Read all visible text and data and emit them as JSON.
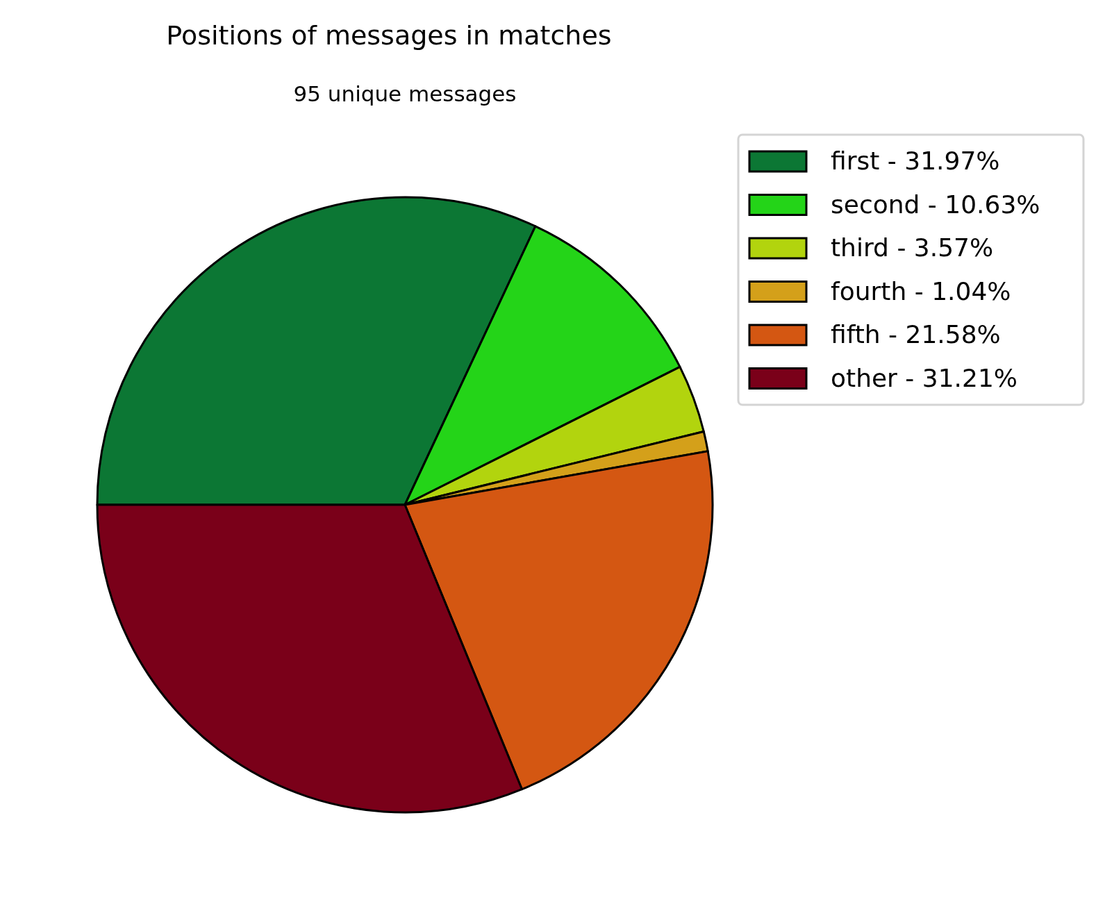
{
  "chart_data": {
    "type": "pie",
    "title": "Positions of messages in matches",
    "subtitle": "95 unique messages",
    "categories": [
      "first - 31.97%",
      "second - 10.63%",
      "third - 3.57%",
      "fourth - 1.04%",
      "fifth - 21.58%",
      "other - 31.21%"
    ],
    "values": [
      31.97,
      10.63,
      3.57,
      1.04,
      21.58,
      31.21
    ],
    "colors": [
      "#0c7734",
      "#24d418",
      "#b2d40e",
      "#d4a01a",
      "#d45712",
      "#7a0019"
    ],
    "legend": "right"
  }
}
